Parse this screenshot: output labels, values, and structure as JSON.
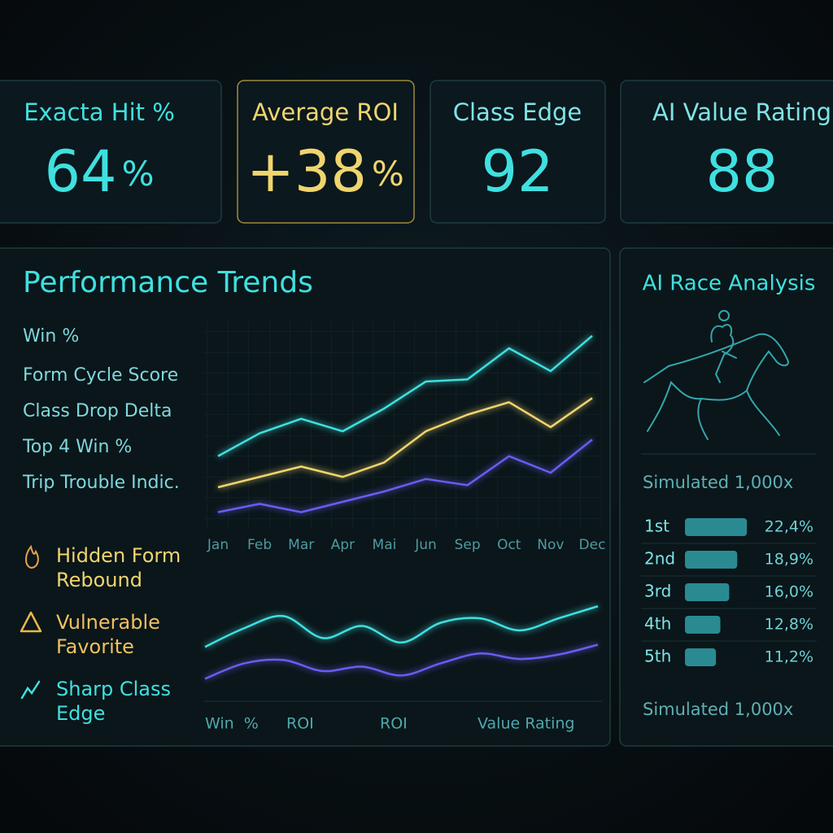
{
  "kpis": [
    {
      "label": "Exacta Hit %",
      "value": "64",
      "unit": "%"
    },
    {
      "label": "Average ROI",
      "value": "+38",
      "unit": "%"
    },
    {
      "label": "Class Edge",
      "value": "92"
    },
    {
      "label": "AI Value Rating",
      "value": "88"
    }
  ],
  "trends": {
    "title": "Performance Trends",
    "metrics": [
      "Win %",
      "Form Cycle Score",
      "Class Drop Delta",
      "Top 4 Win %",
      "Trip Trouble Indic."
    ],
    "alerts": [
      [
        "Hidden Form",
        "Rebound"
      ],
      [
        "Vulnerable",
        "Favorite"
      ],
      [
        "Sharp Class",
        "Edge"
      ]
    ],
    "bottom_labels": [
      "Win  %",
      "ROI",
      "ROI",
      "Value Rating"
    ]
  },
  "analysis": {
    "title": "AI Race Analysis",
    "simulated_top": "Simulated 1,000x",
    "simulated_bottom": "Simulated 1,000x"
  },
  "chart_data": [
    {
      "type": "line",
      "categories": [
        "Jan",
        "Feb",
        "Mar",
        "Apr",
        "Mai",
        "Jun",
        "Sep",
        "Oct",
        "Nov",
        "Dec"
      ],
      "ylim": [
        0,
        100
      ],
      "grid": true,
      "series": [
        {
          "color": "#3fe0e0",
          "values": [
            35,
            46,
            53,
            47,
            58,
            71,
            72,
            87,
            76,
            93
          ]
        },
        {
          "color": "#f0d56e",
          "values": [
            20,
            25,
            30,
            25,
            32,
            47,
            55,
            61,
            49,
            63
          ]
        },
        {
          "color": "#6a5df0",
          "values": [
            8,
            12,
            8,
            13,
            18,
            24,
            21,
            35,
            27,
            43
          ]
        }
      ]
    },
    {
      "type": "line",
      "smooth": true,
      "x": [
        0,
        1,
        2,
        3,
        4,
        5,
        6,
        7,
        8,
        9,
        10
      ],
      "xlim": [
        0,
        10
      ],
      "ylim": [
        0,
        100
      ],
      "series": [
        {
          "color": "#3fe0e0",
          "values": [
            48,
            65,
            76,
            56,
            67,
            52,
            70,
            74,
            63,
            74,
            85
          ]
        },
        {
          "color": "#6a5df0",
          "values": [
            19,
            33,
            36,
            26,
            30,
            22,
            33,
            42,
            37,
            41,
            50
          ]
        }
      ]
    },
    {
      "type": "bar",
      "orientation": "horizontal",
      "categories": [
        "1st",
        "2nd",
        "3rd",
        "4th",
        "5th"
      ],
      "values": [
        22.4,
        18.9,
        16.0,
        12.8,
        11.2
      ],
      "value_labels": [
        "22,4%",
        "18,9%",
        "16,0%",
        "12,8%",
        "11,2%"
      ],
      "xlim": [
        0,
        25
      ],
      "color": "#2a8a92"
    }
  ]
}
